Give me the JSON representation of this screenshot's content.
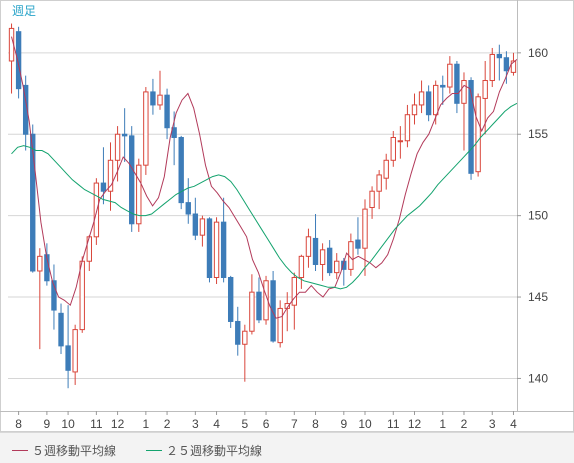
{
  "chart_data": {
    "type": "candlestick",
    "period_label": "週足",
    "ylim": [
      138,
      163
    ],
    "yticks": [
      140,
      145,
      150,
      155,
      160
    ],
    "x_month_labels": [
      "8",
      "9",
      "10",
      "11",
      "12",
      "1",
      "2",
      "3",
      "4",
      "5",
      "6",
      "7",
      "8",
      "9",
      "10",
      "11",
      "12",
      "1",
      "2",
      "3",
      "4"
    ],
    "colors": {
      "up": "#d9463b",
      "down": "#3d7cb8",
      "ma5": "#b23a5a",
      "ma25": "#14a36e",
      "axis_text": "#444444",
      "grid": "#d6d6d6",
      "label": "#2aa4c9"
    },
    "series": [
      {
        "name": "５週移動平均線",
        "key": "ma5",
        "values": [
          161.0,
          159.6,
          157.9,
          155.8,
          152.8,
          149.6,
          147.4,
          145.9,
          145.0,
          144.8,
          144.5,
          145.6,
          147.2,
          148.4,
          149.6,
          151.0,
          151.5,
          151.9,
          152.7,
          153.6,
          153.2,
          152.6,
          152.0,
          151.2,
          150.6,
          151.1,
          152.4,
          154.8,
          156.3,
          157.1,
          157.5,
          156.6,
          155.0,
          153.1,
          151.8,
          151.4,
          150.9,
          150.5,
          149.9,
          149.3,
          148.7,
          147.3,
          146.5,
          145.4,
          144.4,
          143.7,
          143.8,
          144.4,
          144.9,
          145.3,
          145.3,
          145.7,
          145.3,
          145.0,
          145.5,
          145.6,
          146.5,
          147.7,
          147.3,
          147.5,
          147.3,
          147.1,
          146.8,
          147.1,
          147.6,
          148.6,
          149.8,
          151.3,
          152.6,
          153.8,
          154.5,
          155.0,
          155.9,
          156.8,
          157.2,
          157.5,
          157.5,
          158.0,
          157.8,
          156.1,
          155.2,
          156.0,
          156.4,
          157.6,
          158.4,
          159.3,
          159.6
        ]
      },
      {
        "name": "２５週移動平均線",
        "key": "ma25",
        "values": [
          153.8,
          154.2,
          154.3,
          154.2,
          154.0,
          154.0,
          153.8,
          153.4,
          153.0,
          152.6,
          152.2,
          151.9,
          151.6,
          151.4,
          151.2,
          151.0,
          150.9,
          150.8,
          150.5,
          150.3,
          150.1,
          150.0,
          150.0,
          150.1,
          150.4,
          150.7,
          151.0,
          151.3,
          151.5,
          151.7,
          151.8,
          152.0,
          152.2,
          152.4,
          152.5,
          152.4,
          152.1,
          151.6,
          151.0,
          150.4,
          149.8,
          149.2,
          148.6,
          148.0,
          147.4,
          146.9,
          146.5,
          146.2,
          146.0,
          145.9,
          145.8,
          145.7,
          145.6,
          145.6,
          145.5,
          145.6,
          145.9,
          146.3,
          146.8,
          147.2,
          147.7,
          148.2,
          148.7,
          149.2,
          149.6,
          150.0,
          150.3,
          150.6,
          151.0,
          151.4,
          151.9,
          152.3,
          152.7,
          153.1,
          153.5,
          153.9,
          154.3,
          154.8,
          155.2,
          155.6,
          156.0,
          156.4,
          156.7,
          156.9
        ]
      }
    ],
    "candles": [
      [
        159.5,
        161.8,
        157.5,
        161.5
      ],
      [
        161.3,
        161.6,
        157.2,
        157.8
      ],
      [
        158.0,
        158.6,
        154.0,
        155.0
      ],
      [
        155.0,
        155.6,
        146.5,
        146.6
      ],
      [
        146.6,
        148.0,
        141.8,
        147.5
      ],
      [
        147.6,
        148.3,
        145.7,
        146.0
      ],
      [
        146.0,
        147.0,
        143.0,
        144.2
      ],
      [
        144.0,
        144.6,
        141.5,
        142.0
      ],
      [
        142.0,
        144.5,
        139.4,
        140.5
      ],
      [
        140.4,
        143.3,
        139.6,
        143.0
      ],
      [
        143.0,
        147.5,
        142.8,
        147.2
      ],
      [
        147.2,
        148.8,
        146.6,
        148.7
      ],
      [
        148.7,
        152.3,
        148.2,
        152.0
      ],
      [
        152.0,
        154.2,
        150.7,
        151.5
      ],
      [
        151.5,
        154.5,
        150.3,
        153.4
      ],
      [
        153.4,
        155.5,
        152.1,
        155.0
      ],
      [
        155.0,
        156.6,
        153.3,
        154.9
      ],
      [
        154.9,
        155.5,
        149.0,
        149.5
      ],
      [
        149.5,
        153.5,
        149.0,
        153.1
      ],
      [
        153.1,
        157.9,
        152.5,
        157.6
      ],
      [
        157.6,
        158.4,
        156.2,
        156.8
      ],
      [
        156.8,
        158.9,
        156.5,
        157.4
      ],
      [
        157.4,
        157.8,
        154.7,
        155.4
      ],
      [
        155.4,
        156.4,
        153.1,
        154.8
      ],
      [
        154.8,
        154.9,
        150.4,
        150.8
      ],
      [
        150.8,
        152.3,
        149.5,
        150.1
      ],
      [
        150.1,
        151.1,
        148.5,
        148.8
      ],
      [
        148.8,
        150.0,
        148.1,
        149.8
      ],
      [
        149.8,
        149.9,
        145.9,
        146.2
      ],
      [
        146.2,
        149.9,
        145.8,
        149.6
      ],
      [
        149.6,
        151.1,
        145.9,
        146.2
      ],
      [
        146.2,
        146.3,
        143.1,
        143.5
      ],
      [
        143.5,
        144.4,
        141.4,
        142.1
      ],
      [
        142.1,
        143.3,
        139.8,
        142.9
      ],
      [
        142.9,
        146.4,
        142.7,
        145.3
      ],
      [
        145.3,
        146.2,
        143.4,
        143.6
      ],
      [
        143.6,
        146.3,
        143.3,
        146.0
      ],
      [
        146.0,
        146.6,
        142.2,
        142.3
      ],
      [
        142.2,
        144.8,
        141.9,
        144.3
      ],
      [
        144.3,
        145.3,
        142.9,
        144.6
      ],
      [
        144.5,
        146.5,
        143.0,
        146.2
      ],
      [
        146.2,
        147.6,
        145.5,
        147.5
      ],
      [
        147.5,
        149.2,
        146.8,
        148.7
      ],
      [
        148.6,
        150.1,
        146.6,
        147.0
      ],
      [
        147.0,
        148.3,
        146.0,
        147.9
      ],
      [
        148.0,
        148.5,
        146.3,
        146.5
      ],
      [
        146.5,
        147.7,
        146.1,
        147.2
      ],
      [
        147.2,
        147.4,
        145.7,
        146.7
      ],
      [
        146.7,
        148.9,
        146.3,
        148.4
      ],
      [
        148.5,
        149.9,
        147.6,
        148.0
      ],
      [
        148.0,
        151.0,
        146.3,
        150.4
      ],
      [
        150.5,
        151.8,
        149.8,
        151.5
      ],
      [
        151.5,
        152.8,
        150.4,
        152.5
      ],
      [
        152.3,
        153.8,
        151.6,
        153.4
      ],
      [
        153.4,
        155.2,
        153.0,
        154.8
      ],
      [
        154.6,
        155.5,
        153.5,
        154.6
      ],
      [
        154.6,
        156.8,
        154.2,
        156.2
      ],
      [
        156.2,
        157.5,
        155.6,
        156.8
      ],
      [
        156.8,
        158.3,
        156.3,
        157.6
      ],
      [
        157.6,
        158.0,
        155.8,
        156.2
      ],
      [
        156.2,
        158.3,
        155.6,
        158.0
      ],
      [
        158.0,
        158.6,
        156.8,
        157.9
      ],
      [
        157.9,
        159.8,
        157.5,
        159.3
      ],
      [
        159.3,
        159.5,
        156.3,
        156.9
      ],
      [
        156.9,
        158.8,
        154.0,
        158.3
      ],
      [
        158.3,
        158.5,
        152.2,
        152.6
      ],
      [
        152.7,
        157.5,
        152.4,
        157.3
      ],
      [
        157.2,
        159.5,
        155.0,
        158.3
      ],
      [
        158.3,
        160.3,
        157.9,
        159.9
      ],
      [
        159.9,
        160.5,
        158.3,
        159.7
      ],
      [
        159.7,
        160.1,
        158.1,
        158.9
      ],
      [
        158.8,
        160.0,
        158.6,
        159.5
      ]
    ]
  },
  "legend": {
    "ma5_label": "５週移動平均線",
    "ma25_label": "２５週移動平均線"
  }
}
